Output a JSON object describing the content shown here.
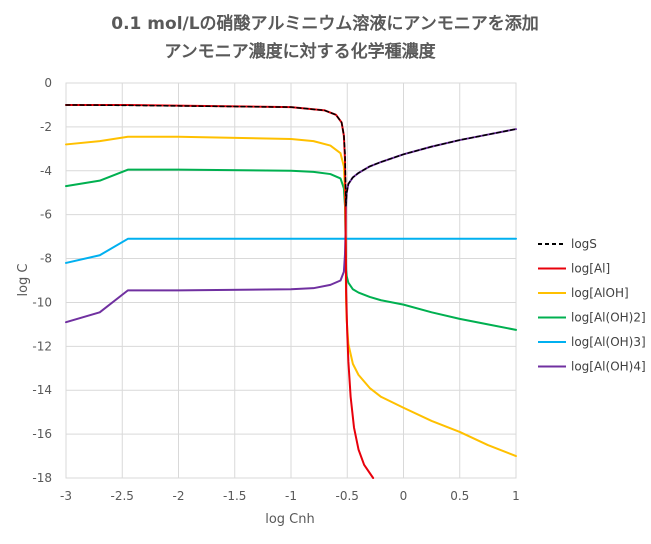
{
  "chart_data": {
    "type": "line",
    "title_lines": [
      "0.1 mol/Lの硝酸アルミニウム溶液にアンモニアを添加",
      "アンモニア濃度に対する化学種濃度"
    ],
    "xlabel": "log Cnh",
    "ylabel": "log C",
    "xlim": [
      -3,
      1
    ],
    "ylim": [
      -18,
      0
    ],
    "xticks": [
      -3,
      -2.5,
      -2,
      -1.5,
      -1,
      -0.5,
      0,
      0.5,
      1
    ],
    "yticks": [
      0,
      -2,
      -4,
      -6,
      -8,
      -10,
      -12,
      -14,
      -16,
      -18
    ],
    "xtick_labels": [
      "-3",
      "-2.5",
      "-2",
      "-1.5",
      "-1",
      "-0.5",
      "0",
      "0.5",
      "1"
    ],
    "ytick_labels": [
      "0",
      "-2",
      "-4",
      "-6",
      "-8",
      "-10",
      "-12",
      "-14",
      "-16",
      "-18"
    ],
    "grid": true,
    "legend_position": "right",
    "series": [
      {
        "name": "logS",
        "color": "#000000",
        "dash": true,
        "points": [
          [
            -3,
            -1.0
          ],
          [
            -2.45,
            -1.02
          ],
          [
            -1.0,
            -1.1
          ],
          [
            -0.7,
            -1.25
          ],
          [
            -0.6,
            -1.45
          ],
          [
            -0.55,
            -1.8
          ],
          [
            -0.53,
            -2.4
          ],
          [
            -0.52,
            -3.2
          ],
          [
            -0.515,
            -4.5
          ],
          [
            -0.512,
            -5.6
          ],
          [
            -0.505,
            -5.0
          ],
          [
            -0.49,
            -4.6
          ],
          [
            -0.45,
            -4.3
          ],
          [
            -0.4,
            -4.1
          ],
          [
            -0.3,
            -3.8
          ],
          [
            -0.2,
            -3.6
          ],
          [
            0,
            -3.25
          ],
          [
            0.25,
            -2.9
          ],
          [
            0.5,
            -2.6
          ],
          [
            0.75,
            -2.35
          ],
          [
            1.0,
            -2.1
          ]
        ]
      },
      {
        "name": "log[Al]",
        "color": "#e8000b",
        "dash": false,
        "points": [
          [
            -3,
            -1.0
          ],
          [
            -2.45,
            -1.0
          ],
          [
            -1.0,
            -1.1
          ],
          [
            -0.7,
            -1.25
          ],
          [
            -0.6,
            -1.45
          ],
          [
            -0.55,
            -1.8
          ],
          [
            -0.53,
            -2.4
          ],
          [
            -0.52,
            -3.5
          ],
          [
            -0.515,
            -6.0
          ],
          [
            -0.512,
            -8.0
          ],
          [
            -0.51,
            -9.5
          ],
          [
            -0.505,
            -10.5
          ],
          [
            -0.5,
            -11.4
          ],
          [
            -0.49,
            -12.7
          ],
          [
            -0.47,
            -14.3
          ],
          [
            -0.44,
            -15.7
          ],
          [
            -0.4,
            -16.7
          ],
          [
            -0.35,
            -17.4
          ],
          [
            -0.27,
            -18.0
          ]
        ]
      },
      {
        "name": "log[AlOH]",
        "color": "#ffc000",
        "dash": false,
        "points": [
          [
            -3,
            -2.8
          ],
          [
            -2.7,
            -2.65
          ],
          [
            -2.45,
            -2.45
          ],
          [
            -2.0,
            -2.45
          ],
          [
            -1.0,
            -2.55
          ],
          [
            -0.8,
            -2.65
          ],
          [
            -0.65,
            -2.85
          ],
          [
            -0.56,
            -3.2
          ],
          [
            -0.53,
            -3.8
          ],
          [
            -0.52,
            -5.0
          ],
          [
            -0.515,
            -7.0
          ],
          [
            -0.512,
            -9.0
          ],
          [
            -0.51,
            -10.0
          ],
          [
            -0.505,
            -10.8
          ],
          [
            -0.49,
            -11.9
          ],
          [
            -0.45,
            -12.8
          ],
          [
            -0.4,
            -13.3
          ],
          [
            -0.3,
            -13.9
          ],
          [
            -0.2,
            -14.3
          ],
          [
            0,
            -14.8
          ],
          [
            0.25,
            -15.4
          ],
          [
            0.5,
            -15.9
          ],
          [
            0.75,
            -16.5
          ],
          [
            1.0,
            -17.0
          ]
        ]
      },
      {
        "name": "log[Al(OH)2]",
        "color": "#00b050",
        "dash": false,
        "points": [
          [
            -3,
            -4.7
          ],
          [
            -2.7,
            -4.45
          ],
          [
            -2.45,
            -3.95
          ],
          [
            -2.0,
            -3.95
          ],
          [
            -1.0,
            -4.0
          ],
          [
            -0.8,
            -4.05
          ],
          [
            -0.65,
            -4.15
          ],
          [
            -0.56,
            -4.35
          ],
          [
            -0.53,
            -4.8
          ],
          [
            -0.52,
            -5.6
          ],
          [
            -0.515,
            -7.0
          ],
          [
            -0.512,
            -8.0
          ],
          [
            -0.51,
            -8.5
          ],
          [
            -0.505,
            -8.8
          ],
          [
            -0.49,
            -9.1
          ],
          [
            -0.45,
            -9.4
          ],
          [
            -0.4,
            -9.55
          ],
          [
            -0.3,
            -9.75
          ],
          [
            -0.2,
            -9.9
          ],
          [
            0,
            -10.1
          ],
          [
            0.25,
            -10.45
          ],
          [
            0.5,
            -10.75
          ],
          [
            0.75,
            -11.0
          ],
          [
            1.0,
            -11.25
          ]
        ]
      },
      {
        "name": "log[Al(OH)3]",
        "color": "#00b0f0",
        "dash": false,
        "points": [
          [
            -3,
            -8.2
          ],
          [
            -2.7,
            -7.85
          ],
          [
            -2.45,
            -7.1
          ],
          [
            -1.0,
            -7.1
          ],
          [
            0,
            -7.1
          ],
          [
            1.0,
            -7.1
          ]
        ]
      },
      {
        "name": "log[Al(OH)4]",
        "color": "#7030a0",
        "dash": false,
        "points": [
          [
            -3,
            -10.9
          ],
          [
            -2.7,
            -10.45
          ],
          [
            -2.45,
            -9.45
          ],
          [
            -2.0,
            -9.45
          ],
          [
            -1.0,
            -9.4
          ],
          [
            -0.8,
            -9.35
          ],
          [
            -0.65,
            -9.2
          ],
          [
            -0.56,
            -9.0
          ],
          [
            -0.53,
            -8.6
          ],
          [
            -0.52,
            -7.8
          ],
          [
            -0.515,
            -6.8
          ],
          [
            -0.512,
            -5.6
          ],
          [
            -0.505,
            -5.0
          ],
          [
            -0.49,
            -4.6
          ],
          [
            -0.45,
            -4.3
          ],
          [
            -0.4,
            -4.1
          ],
          [
            -0.3,
            -3.8
          ],
          [
            -0.2,
            -3.6
          ],
          [
            0,
            -3.25
          ],
          [
            0.25,
            -2.9
          ],
          [
            0.5,
            -2.6
          ],
          [
            0.75,
            -2.35
          ],
          [
            1.0,
            -2.1
          ]
        ]
      }
    ]
  }
}
